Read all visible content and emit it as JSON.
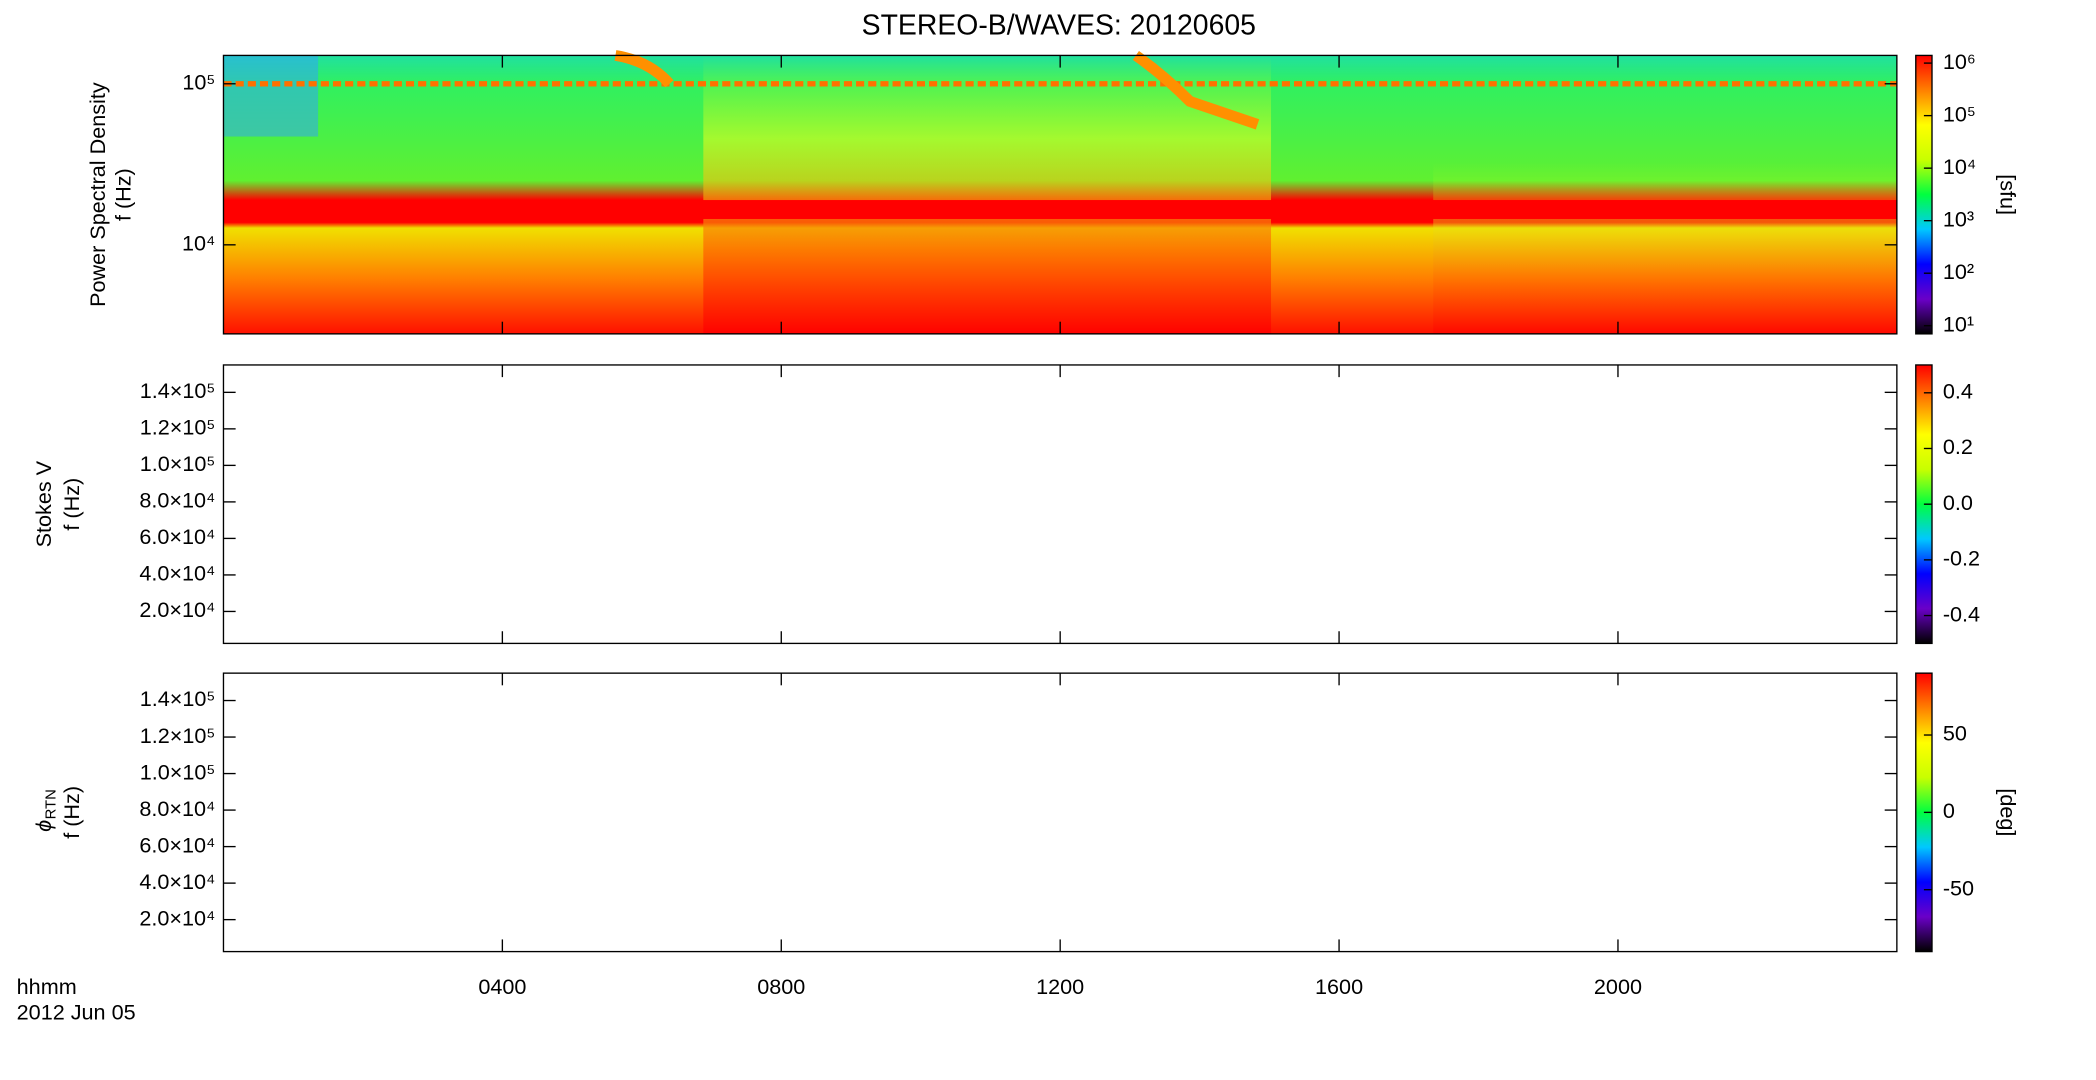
{
  "chart_data": [
    {
      "type": "heatmap",
      "title": "STEREO-B/WAVES: 20120605",
      "ylabel": "Power Spectral Density",
      "ylabel2": "f (Hz)",
      "ylog": true,
      "ylim": [
        2800,
        150000
      ],
      "yticks": [
        {
          "value": 10000,
          "label": "10⁴"
        },
        {
          "value": 100000,
          "label": "10⁵"
        }
      ],
      "colormap": [
        "#000000",
        "#6a00c8",
        "#0000ff",
        "#00c8ff",
        "#00ff40",
        "#c8ff00",
        "#ffff00",
        "#ff8000",
        "#ff0000"
      ],
      "colorbar": {
        "log": true,
        "lim": [
          7,
          1400000
        ],
        "label": "[sfu]",
        "ticks": [
          {
            "value": 10,
            "label": "10¹"
          },
          {
            "value": 100,
            "label": "10²"
          },
          {
            "value": 1000,
            "label": "10³"
          },
          {
            "value": 10000,
            "label": "10⁴"
          },
          {
            "value": 100000,
            "label": "10⁵"
          },
          {
            "value": 1000000,
            "label": "10⁶"
          }
        ]
      }
    },
    {
      "type": "heatmap",
      "ylabel": "Stokes V",
      "ylabel2": "f (Hz)",
      "ylog": false,
      "ylim": [
        2500,
        155000
      ],
      "yticks": [
        {
          "value": 20000,
          "label": "2.0×10⁴"
        },
        {
          "value": 40000,
          "label": "4.0×10⁴"
        },
        {
          "value": 60000,
          "label": "6.0×10⁴"
        },
        {
          "value": 80000,
          "label": "8.0×10⁴"
        },
        {
          "value": 100000,
          "label": "1.0×10⁵"
        },
        {
          "value": 120000,
          "label": "1.2×10⁵"
        },
        {
          "value": 140000,
          "label": "1.4×10⁵"
        }
      ],
      "colorbar": {
        "log": false,
        "lim": [
          -0.5,
          0.5
        ],
        "ticks": [
          {
            "value": -0.4,
            "label": "-0.4"
          },
          {
            "value": -0.2,
            "label": "-0.2"
          },
          {
            "value": 0,
            "label": "0.0"
          },
          0.2,
          0.4
        ]
      }
    },
    {
      "type": "heatmap",
      "ylabel": "ϕ",
      "ylabel_sub": "RTN",
      "ylabel2": "f (Hz)",
      "ylog": false,
      "ylim": [
        2500,
        155000
      ],
      "yticks": [
        {
          "value": 20000,
          "label": "2.0×10⁴"
        },
        {
          "value": 40000,
          "label": "4.0×10⁴"
        },
        {
          "value": 60000,
          "label": "6.0×10⁴"
        },
        {
          "value": 80000,
          "label": "8.0×10⁴"
        },
        {
          "value": 100000,
          "label": "1.0×10⁵"
        },
        {
          "value": 120000,
          "label": "1.2×10⁵"
        },
        {
          "value": 140000,
          "label": "1.4×10⁵"
        }
      ],
      "colorbar": {
        "log": false,
        "lim": [
          -90,
          90
        ],
        "label": "[deg]",
        "ticks": [
          -50,
          0,
          50
        ]
      },
      "xlabel": "hhmm",
      "date": "2012 Jun 05",
      "xlim": [
        0,
        24
      ],
      "xticks": [
        {
          "value": 4,
          "label": "0400"
        },
        {
          "value": 8,
          "label": "0800"
        },
        {
          "value": 12,
          "label": "1200"
        },
        {
          "value": 16,
          "label": "1600"
        },
        {
          "value": 20,
          "label": "2000"
        }
      ]
    }
  ]
}
